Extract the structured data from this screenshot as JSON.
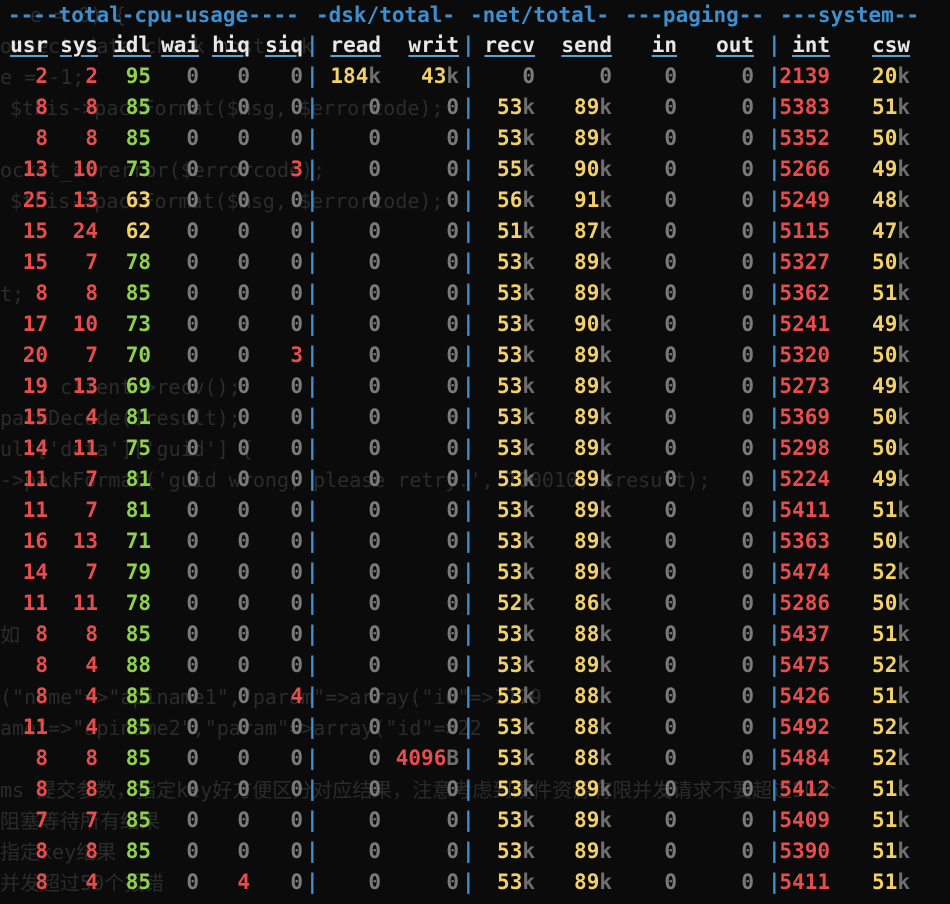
{
  "colors": {
    "background": "#0b0b0b",
    "header": "#e8e8e8",
    "separator": "#3f8fcf",
    "low": "#e84d4d",
    "mid": "#f2d16b",
    "high": "#8fd14f",
    "zero": "#7a7a7a",
    "unit": "#6e6e6e"
  },
  "groups": [
    {
      "id": "cpu",
      "label": "----total-cpu-usage----"
    },
    {
      "id": "dsk",
      "label": "-dsk/total-"
    },
    {
      "id": "net",
      "label": "-net/total-"
    },
    {
      "id": "paging",
      "label": "---paging--"
    },
    {
      "id": "system",
      "label": "---system--"
    }
  ],
  "columns": [
    "usr",
    "sys",
    "idl",
    "wai",
    "hiq",
    "siq",
    "read",
    "writ",
    "recv",
    "send",
    "in",
    "out",
    "int",
    "csw"
  ],
  "rows": [
    [
      "2",
      "2",
      "95",
      "0",
      "0",
      "0",
      "184k",
      "43k",
      "0",
      "0",
      "0",
      "0",
      "2139",
      "20k"
    ],
    [
      "8",
      "8",
      "85",
      "0",
      "0",
      "0",
      "0",
      "0",
      "53k",
      "89k",
      "0",
      "0",
      "5383",
      "51k"
    ],
    [
      "8",
      "8",
      "85",
      "0",
      "0",
      "0",
      "0",
      "0",
      "53k",
      "89k",
      "0",
      "0",
      "5352",
      "50k"
    ],
    [
      "13",
      "10",
      "73",
      "0",
      "0",
      "3",
      "0",
      "0",
      "55k",
      "90k",
      "0",
      "0",
      "5266",
      "49k"
    ],
    [
      "25",
      "13",
      "63",
      "0",
      "0",
      "0",
      "0",
      "0",
      "56k",
      "91k",
      "0",
      "0",
      "5249",
      "48k"
    ],
    [
      "15",
      "24",
      "62",
      "0",
      "0",
      "0",
      "0",
      "0",
      "51k",
      "87k",
      "0",
      "0",
      "5115",
      "47k"
    ],
    [
      "15",
      "7",
      "78",
      "0",
      "0",
      "0",
      "0",
      "0",
      "53k",
      "89k",
      "0",
      "0",
      "5327",
      "50k"
    ],
    [
      "8",
      "8",
      "85",
      "0",
      "0",
      "0",
      "0",
      "0",
      "53k",
      "89k",
      "0",
      "0",
      "5362",
      "51k"
    ],
    [
      "17",
      "10",
      "73",
      "0",
      "0",
      "0",
      "0",
      "0",
      "53k",
      "90k",
      "0",
      "0",
      "5241",
      "49k"
    ],
    [
      "20",
      "7",
      "70",
      "0",
      "0",
      "3",
      "0",
      "0",
      "53k",
      "89k",
      "0",
      "0",
      "5320",
      "50k"
    ],
    [
      "19",
      "13",
      "69",
      "0",
      "0",
      "0",
      "0",
      "0",
      "53k",
      "89k",
      "0",
      "0",
      "5273",
      "49k"
    ],
    [
      "15",
      "4",
      "81",
      "0",
      "0",
      "0",
      "0",
      "0",
      "53k",
      "89k",
      "0",
      "0",
      "5369",
      "50k"
    ],
    [
      "14",
      "11",
      "75",
      "0",
      "0",
      "0",
      "0",
      "0",
      "53k",
      "89k",
      "0",
      "0",
      "5298",
      "50k"
    ],
    [
      "11",
      "7",
      "81",
      "0",
      "0",
      "0",
      "0",
      "0",
      "53k",
      "89k",
      "0",
      "0",
      "5224",
      "49k"
    ],
    [
      "11",
      "7",
      "81",
      "0",
      "0",
      "0",
      "0",
      "0",
      "53k",
      "89k",
      "0",
      "0",
      "5411",
      "51k"
    ],
    [
      "16",
      "13",
      "71",
      "0",
      "0",
      "0",
      "0",
      "0",
      "53k",
      "89k",
      "0",
      "0",
      "5363",
      "50k"
    ],
    [
      "14",
      "7",
      "79",
      "0",
      "0",
      "0",
      "0",
      "0",
      "53k",
      "89k",
      "0",
      "0",
      "5474",
      "52k"
    ],
    [
      "11",
      "11",
      "78",
      "0",
      "0",
      "0",
      "0",
      "0",
      "52k",
      "86k",
      "0",
      "0",
      "5286",
      "50k"
    ],
    [
      "8",
      "8",
      "85",
      "0",
      "0",
      "0",
      "0",
      "0",
      "53k",
      "88k",
      "0",
      "0",
      "5437",
      "51k"
    ],
    [
      "8",
      "4",
      "88",
      "0",
      "0",
      "0",
      "0",
      "0",
      "53k",
      "89k",
      "0",
      "0",
      "5475",
      "52k"
    ],
    [
      "8",
      "4",
      "85",
      "0",
      "0",
      "4",
      "0",
      "0",
      "53k",
      "88k",
      "0",
      "0",
      "5426",
      "51k"
    ],
    [
      "11",
      "4",
      "85",
      "0",
      "0",
      "0",
      "0",
      "0",
      "53k",
      "88k",
      "0",
      "0",
      "5492",
      "52k"
    ],
    [
      "8",
      "8",
      "85",
      "0",
      "0",
      "0",
      "0",
      "4096B",
      "53k",
      "88k",
      "0",
      "0",
      "5484",
      "52k"
    ],
    [
      "8",
      "8",
      "85",
      "0",
      "0",
      "0",
      "0",
      "0",
      "53k",
      "89k",
      "0",
      "0",
      "5412",
      "51k"
    ],
    [
      "7",
      "7",
      "85",
      "0",
      "0",
      "0",
      "0",
      "0",
      "53k",
      "89k",
      "0",
      "0",
      "5409",
      "51k"
    ],
    [
      "8",
      "8",
      "85",
      "0",
      "0",
      "0",
      "0",
      "0",
      "53k",
      "89k",
      "0",
      "0",
      "5390",
      "51k"
    ],
    [
      "8",
      "4",
      "85",
      "0",
      "4",
      "0",
      "0",
      "0",
      "53k",
      "89k",
      "0",
      "0",
      "5411",
      "51k"
    ]
  ],
  "background_text": [
    "e = 0) {",
    "onnect data check host $ck",
    "e = -1;",
    "$this->packFormat($msg, $errorcode);",
    "ocket_strerror($errorcode);",
    "$this->packFormat($msg, $errorcode);",
    "t;",
    "client->recv();",
    "packDecode($result);",
    "ult['data']['guid'] {",
    "->packFormat('guid wrong, please retry.', 100010, $result);",
    "如",
    "(\"name\"=>\"apiname1\",\"param\"=>array(\"id\"=>1179",
    "ame\"=>\"apiname2\",\"param\"=>array(\"id\"=>22",
    "ms 提交参数，指定key好方便区分对应结果，注意考虑到硬件资源有限并发请求不要超过50个",
    "阻塞等待所有结果",
    "指定key结果",
    "并发超过50个报错"
  ]
}
